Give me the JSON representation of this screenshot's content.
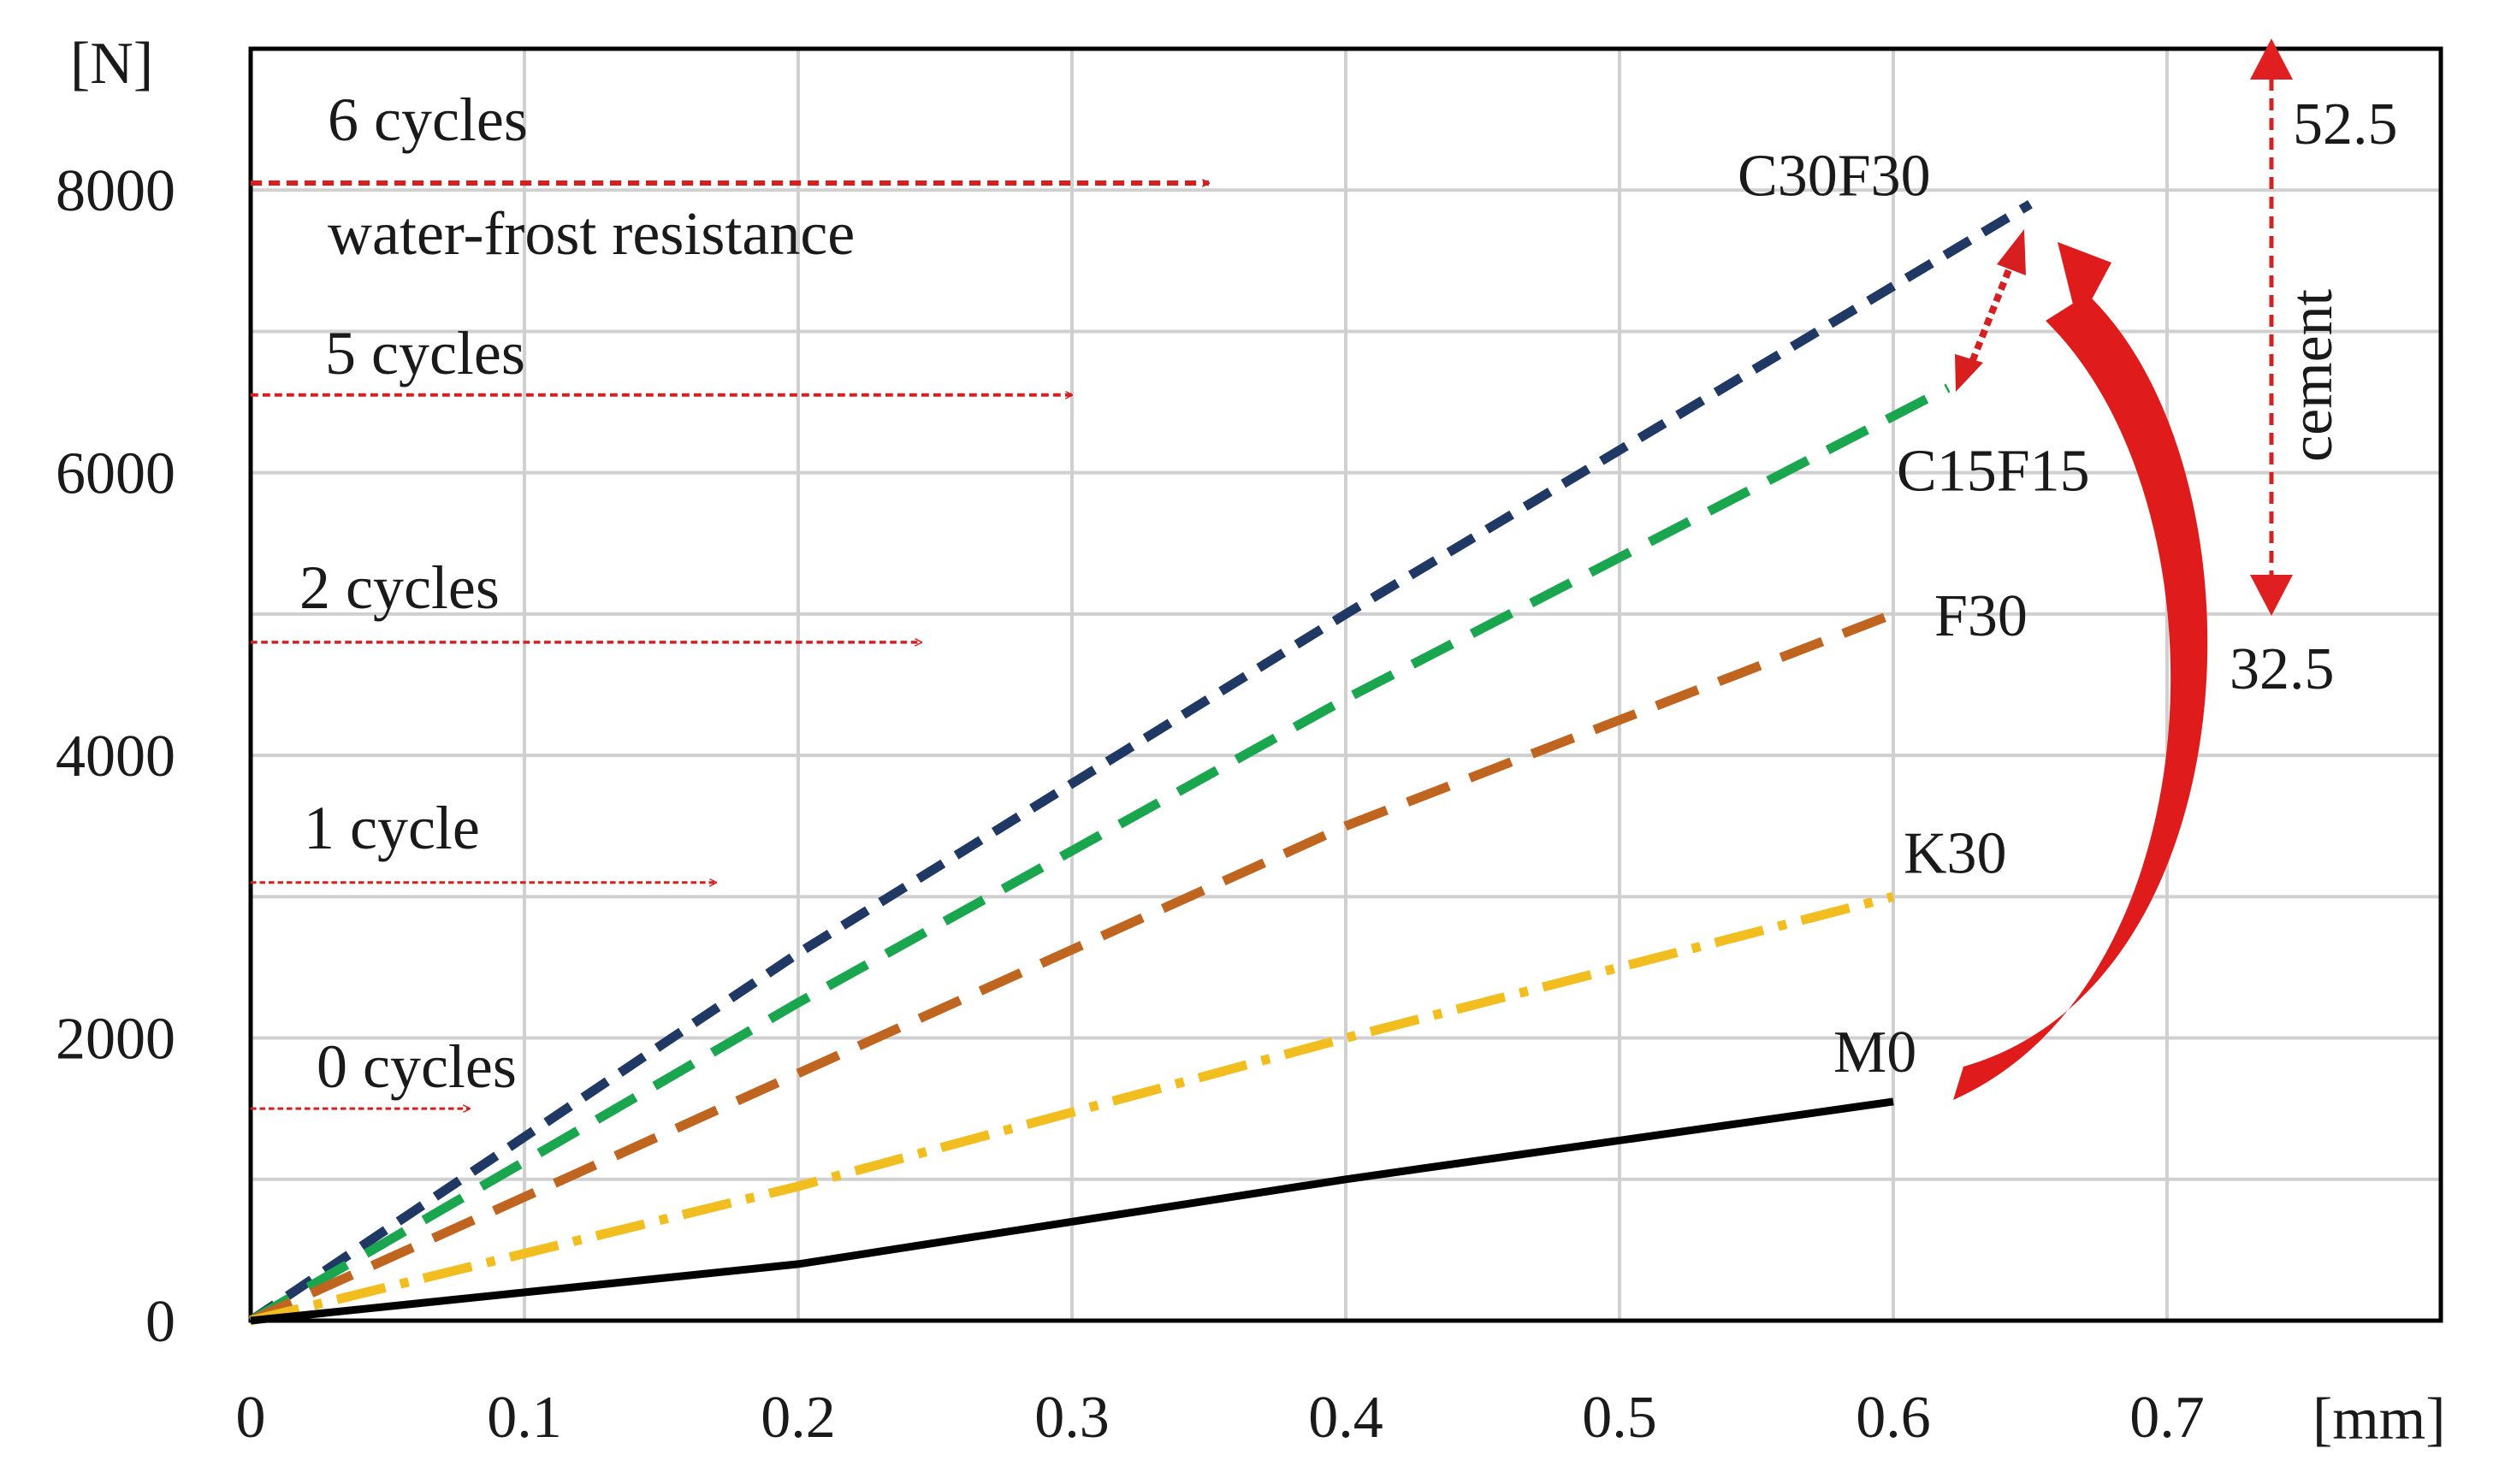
{
  "chart_data": {
    "type": "line",
    "title": "",
    "xlabel": "[mm]",
    "ylabel": "[N]",
    "xlim": [
      0,
      0.8
    ],
    "ylim": [
      0,
      9000
    ],
    "x_ticks": [
      "0",
      "0.1",
      "0.2",
      "0.3",
      "0.4",
      "0.5",
      "0.6",
      "0.7"
    ],
    "y_ticks": [
      "0",
      "2000",
      "4000",
      "6000",
      "8000"
    ],
    "grid": true,
    "series": [
      {
        "name": "C30F30",
        "color": "#1f3864",
        "dash": "dash",
        "x": [
          0,
          0.2,
          0.4,
          0.65
        ],
        "y": [
          0,
          2600,
          5000,
          7900
        ]
      },
      {
        "name": "C15F15",
        "color": "#1aa64e",
        "dash": "long-dash",
        "x": [
          0,
          0.2,
          0.4,
          0.62
        ],
        "y": [
          0,
          2250,
          4400,
          6600
        ]
      },
      {
        "name": "F30",
        "color": "#c0651f",
        "dash": "long-dash",
        "x": [
          0,
          0.2,
          0.4,
          0.6
        ],
        "y": [
          0,
          1750,
          3500,
          5000
        ]
      },
      {
        "name": "K30",
        "color": "#f2bd1e",
        "dash": "dash-dot",
        "x": [
          0,
          0.2,
          0.4,
          0.6
        ],
        "y": [
          0,
          950,
          2000,
          3000
        ]
      },
      {
        "name": "M0",
        "color": "#000000",
        "dash": "solid",
        "x": [
          0,
          0.2,
          0.4,
          0.6
        ],
        "y": [
          0,
          400,
          1000,
          1550
        ]
      }
    ],
    "cycle_annotations": [
      {
        "label": "0 cycles",
        "y": 1500,
        "x_end": 0.08
      },
      {
        "label": "1 cycle",
        "y": 3100,
        "x_end": 0.17
      },
      {
        "label": "2 cycles",
        "y": 4800,
        "x_end": 0.245
      },
      {
        "label": "5 cycles",
        "y": 6550,
        "x_end": 0.3
      },
      {
        "label": "6 cycles",
        "y": 8050,
        "x_end": 0.35
      }
    ],
    "annotation_subtitle": "water-frost resistance",
    "cement": {
      "label": "cement",
      "top": "52.5",
      "bottom": "32.5"
    }
  }
}
